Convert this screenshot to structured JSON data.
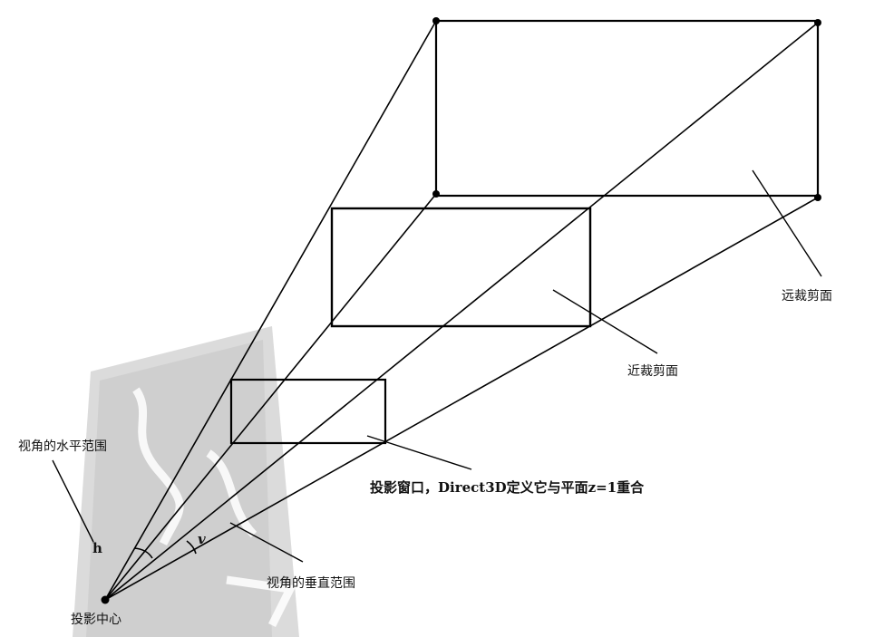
{
  "labels": {
    "far_clip": "远裁剪面",
    "near_clip": "近裁剪面",
    "projection_window": "投影窗口，Direct3D定义它与平面z=1重合",
    "horizontal_fov": "视角的水平范围",
    "vertical_fov": "视角的垂直范围",
    "projection_center": "投影中心",
    "h": "h",
    "v": "v"
  },
  "colors": {
    "line": "#000000",
    "stamp": "#c9c9c9",
    "background": "#ffffff"
  }
}
